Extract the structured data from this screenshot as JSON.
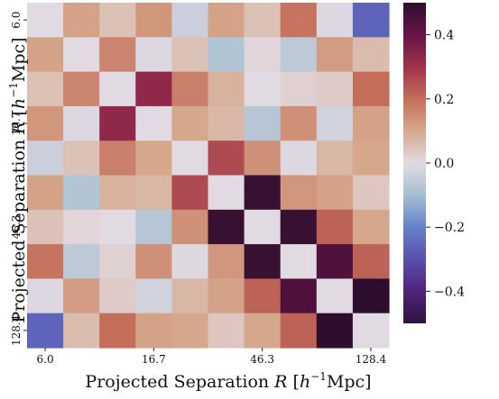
{
  "chart_data": {
    "type": "heatmap",
    "xlabel": "Projected Separation",
    "xlabel_var": "R",
    "xlabel_unit_open": "[",
    "xlabel_unit_h": "h",
    "xlabel_unit_exp": "−1",
    "xlabel_unit_rest": "Mpc]",
    "ylabel": "Projected Separation",
    "ylabel_var": "R",
    "ylabel_unit_open": "[",
    "ylabel_unit_h": "h",
    "ylabel_unit_exp": "−1",
    "ylabel_unit_rest": "Mpc]",
    "x_ticks": [
      {
        "index": 0,
        "label": "6.0"
      },
      {
        "index": 3,
        "label": "16.7"
      },
      {
        "index": 6,
        "label": "46.3"
      },
      {
        "index": 9,
        "label": "128.4"
      }
    ],
    "y_ticks": [
      {
        "index": 0,
        "label": "6.0"
      },
      {
        "index": 3,
        "label": "16.7"
      },
      {
        "index": 6,
        "label": "46.3"
      },
      {
        "index": 9,
        "label": "128.4"
      }
    ],
    "colorbar": {
      "range": [
        -0.5,
        0.5
      ],
      "ticks": [
        {
          "value": 0.4,
          "label": "0.4"
        },
        {
          "value": 0.2,
          "label": "0.2"
        },
        {
          "value": 0.0,
          "label": "0.0"
        },
        {
          "value": -0.2,
          "label": "−0.2"
        },
        {
          "value": -0.4,
          "label": "−0.4"
        }
      ],
      "colormap": "twilight_shifted"
    },
    "matrix": [
      [
        0.0,
        0.11,
        0.05,
        0.13,
        -0.04,
        0.11,
        0.05,
        0.19,
        -0.01,
        -0.26
      ],
      [
        0.11,
        0.0,
        0.16,
        -0.01,
        0.05,
        -0.08,
        0.01,
        -0.06,
        0.12,
        0.06
      ],
      [
        0.05,
        0.16,
        0.0,
        0.33,
        0.17,
        0.08,
        0.0,
        0.02,
        0.03,
        0.2
      ],
      [
        0.13,
        -0.01,
        0.33,
        0.0,
        0.1,
        0.07,
        -0.07,
        0.14,
        -0.03,
        0.11
      ],
      [
        -0.04,
        0.05,
        0.17,
        0.1,
        0.0,
        0.26,
        0.14,
        -0.01,
        0.07,
        0.1
      ],
      [
        0.11,
        -0.08,
        0.08,
        0.07,
        0.26,
        0.0,
        0.48,
        0.13,
        0.11,
        0.04
      ],
      [
        0.05,
        0.01,
        0.0,
        -0.07,
        0.14,
        0.48,
        0.0,
        0.48,
        0.22,
        0.1
      ],
      [
        0.19,
        -0.06,
        0.02,
        0.14,
        -0.01,
        0.13,
        0.48,
        0.0,
        0.44,
        0.22
      ],
      [
        -0.01,
        0.12,
        0.03,
        -0.03,
        0.07,
        0.11,
        0.22,
        0.44,
        0.0,
        0.5
      ],
      [
        -0.26,
        0.06,
        0.2,
        0.11,
        0.1,
        0.04,
        0.1,
        0.22,
        0.5,
        0.0
      ]
    ]
  }
}
